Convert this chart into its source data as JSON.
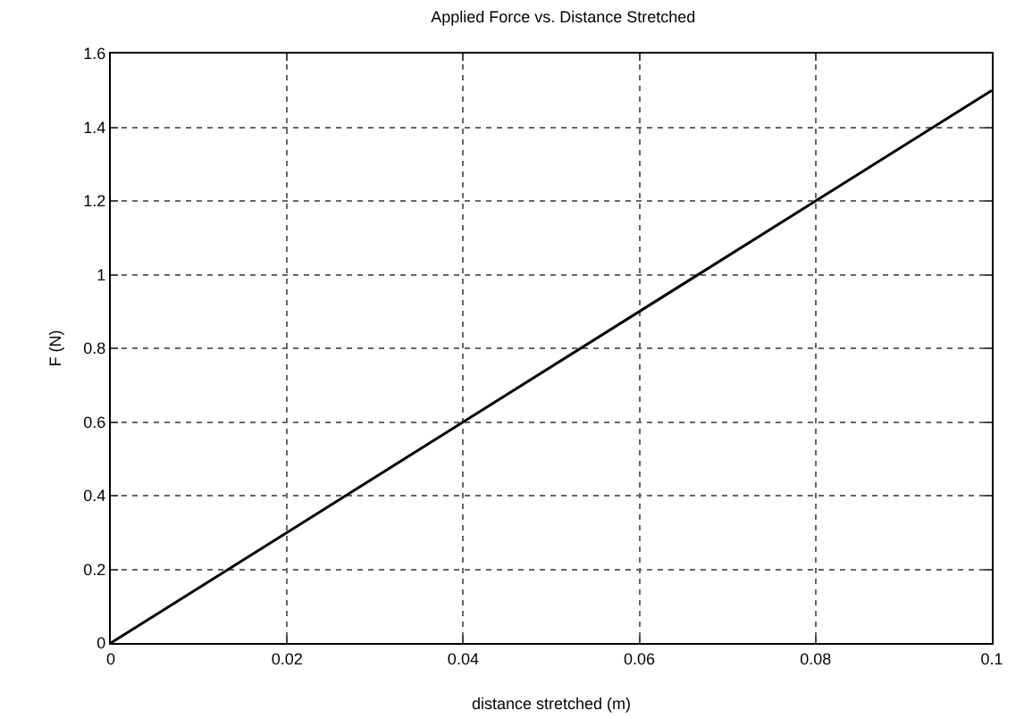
{
  "chart_data": {
    "type": "line",
    "title": "Applied Force vs. Distance Stretched",
    "xlabel": "distance stretched (m)",
    "ylabel": "F (N)",
    "x": [
      0,
      0.1
    ],
    "series": [
      {
        "color": "#000000",
        "values": [
          0,
          1.5
        ]
      }
    ],
    "xlim": [
      0,
      0.1
    ],
    "xticks": [
      0,
      0.02,
      0.04,
      0.06,
      0.08,
      0.1
    ],
    "ylim": [
      0,
      1.6
    ],
    "yticks": [
      0,
      0.2,
      0.4,
      0.6,
      0.8,
      1,
      1.2,
      1.4,
      1.6
    ],
    "grid": true,
    "marker": "none",
    "line_style": "solid"
  }
}
